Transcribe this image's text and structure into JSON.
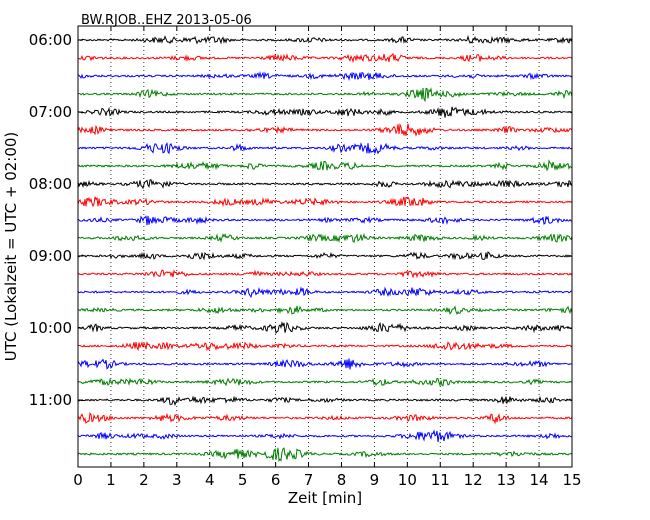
{
  "chart_data": {
    "type": "line",
    "title": "BW.RJOB..EHZ 2013-05-06",
    "xlabel": "Zeit  [min]",
    "ylabel": "UTC (Lokalzeit = UTC + 02:00)",
    "xlim": [
      0,
      15
    ],
    "x_ticks": [
      "0",
      "1",
      "2",
      "3",
      "4",
      "5",
      "6",
      "7",
      "8",
      "9",
      "10",
      "11",
      "12",
      "13",
      "14",
      "15"
    ],
    "y_ticks": [
      "06:00",
      "07:00",
      "08:00",
      "09:00",
      "10:00",
      "11:00"
    ],
    "trace_interval_min": 15,
    "trace_start": "06:00",
    "trace_count": 24,
    "trace_colors": [
      "#000000",
      "#ff0000",
      "#0000ff",
      "#008000"
    ],
    "grid": "x-dotted"
  }
}
